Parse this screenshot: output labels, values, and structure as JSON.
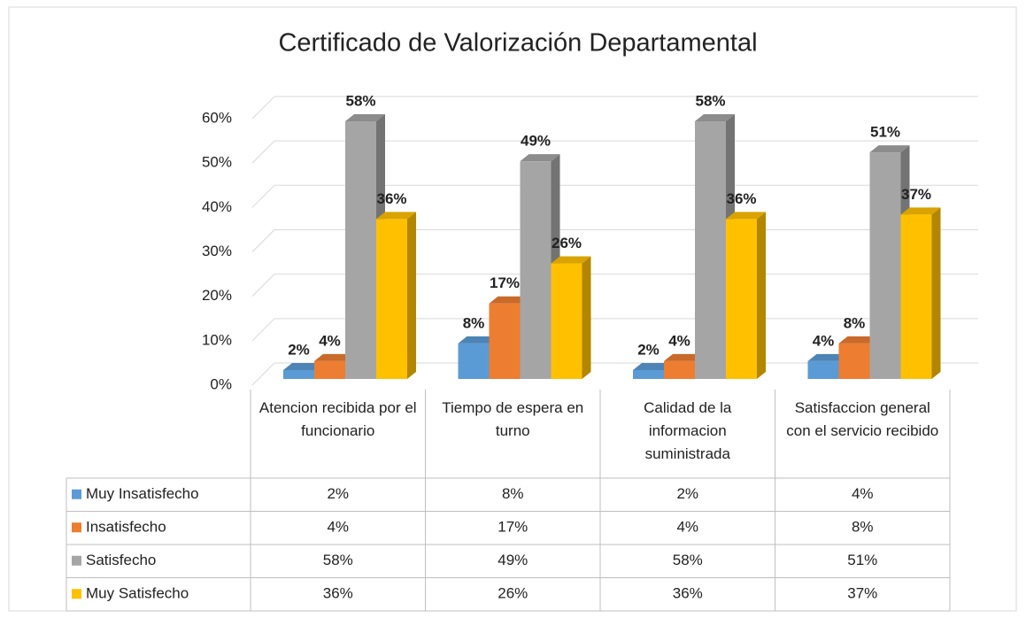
{
  "chart_data": {
    "type": "bar3d",
    "title": "Certificado de Valorización Departamental",
    "categories": [
      "Atencion recibida por el funcionario",
      "Tiempo de espera en turno",
      "Calidad de la informacion suministrada",
      "Satisfaccion general con el servicio recibido"
    ],
    "series": [
      {
        "name": "Muy Insatisfecho",
        "color": "#5b9bd5",
        "values": [
          2,
          8,
          2,
          4
        ],
        "value_labels": [
          "2%",
          "8%",
          "2%",
          "4%"
        ]
      },
      {
        "name": "Insatisfecho",
        "color": "#ed7d31",
        "values": [
          4,
          17,
          4,
          8
        ],
        "value_labels": [
          "4%",
          "17%",
          "4%",
          "8%"
        ]
      },
      {
        "name": "Satisfecho",
        "color": "#a5a5a5",
        "values": [
          58,
          49,
          58,
          51
        ],
        "value_labels": [
          "58%",
          "49%",
          "58%",
          "51%"
        ]
      },
      {
        "name": "Muy Satisfecho",
        "color": "#ffc000",
        "values": [
          36,
          26,
          36,
          37
        ],
        "value_labels": [
          "36%",
          "26%",
          "36%",
          "37%"
        ]
      }
    ],
    "ylim": [
      0,
      60
    ],
    "yticks": [
      {
        "value": 0,
        "label": "0%"
      },
      {
        "value": 10,
        "label": "10%"
      },
      {
        "value": 20,
        "label": "20%"
      },
      {
        "value": 30,
        "label": "30%"
      },
      {
        "value": 40,
        "label": "40%"
      },
      {
        "value": 50,
        "label": "50%"
      },
      {
        "value": 60,
        "label": "60%"
      }
    ],
    "grid": true,
    "data_table": true
  }
}
